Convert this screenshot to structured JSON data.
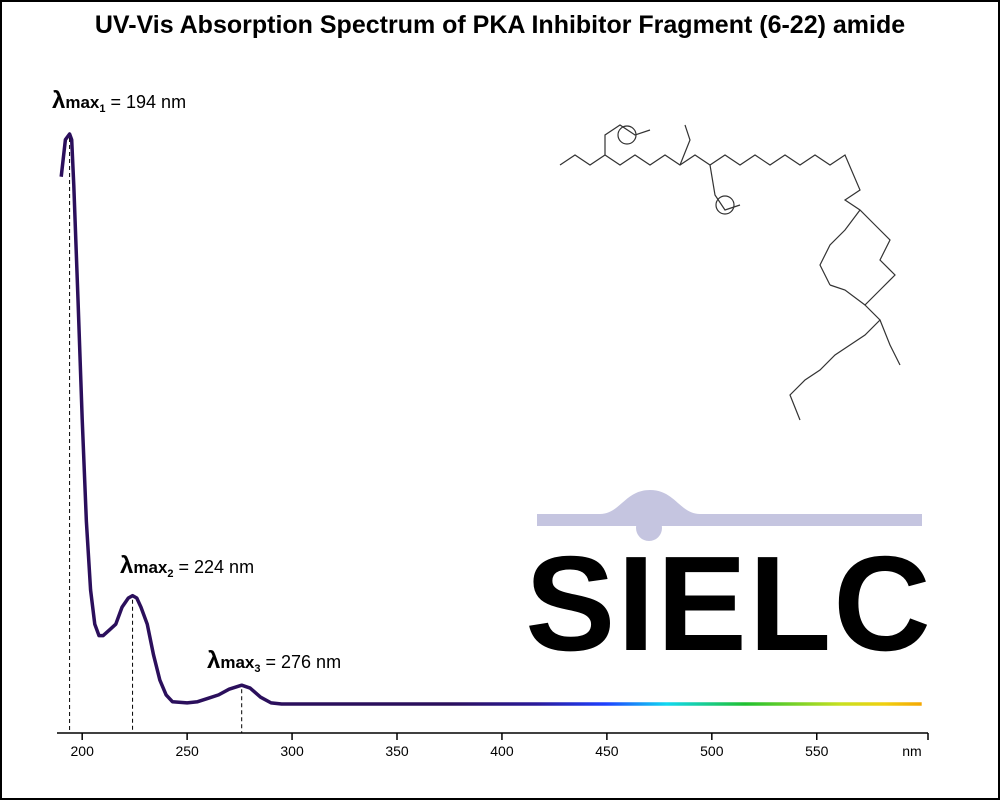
{
  "chart_data": {
    "type": "line",
    "title": "UV-Vis Absorption Spectrum of PKA Inhibitor Fragment (6-22) amide",
    "xlabel": "nm",
    "watermark": "SIELC",
    "xlim": [
      188,
      603
    ],
    "xticks": [
      200,
      250,
      300,
      350,
      400,
      450,
      500,
      550
    ],
    "ylim": [
      0,
      1
    ],
    "x": [
      190,
      192,
      194,
      195,
      196,
      198,
      200,
      202,
      204,
      206,
      208,
      210,
      213,
      216,
      219,
      222,
      224,
      226,
      228,
      231,
      234,
      237,
      240,
      243,
      250,
      255,
      260,
      265,
      270,
      276,
      280,
      285,
      290,
      295,
      350,
      400,
      450,
      500,
      550,
      600
    ],
    "series": [
      {
        "color": "#2b0f5c",
        "values": [
          0.925,
          0.99,
          1.0,
          0.99,
          0.91,
          0.71,
          0.5,
          0.32,
          0.2,
          0.14,
          0.12,
          0.12,
          0.13,
          0.14,
          0.17,
          0.186,
          0.19,
          0.186,
          0.17,
          0.14,
          0.086,
          0.042,
          0.016,
          0.004,
          0.002,
          0.004,
          0.01,
          0.016,
          0.026,
          0.033,
          0.028,
          0.012,
          0.002,
          0,
          0,
          0,
          0,
          0,
          0,
          0
        ]
      }
    ],
    "annotations": [
      {
        "symbol": "λ",
        "sub": "max",
        "index": "1",
        "text": "= 194 nm",
        "x": 194
      },
      {
        "symbol": "λ",
        "sub": "max",
        "index": "2",
        "text": "= 224 nm",
        "x": 224
      },
      {
        "symbol": "λ",
        "sub": "max",
        "index": "3",
        "text": "= 276 nm",
        "x": 276
      }
    ]
  }
}
